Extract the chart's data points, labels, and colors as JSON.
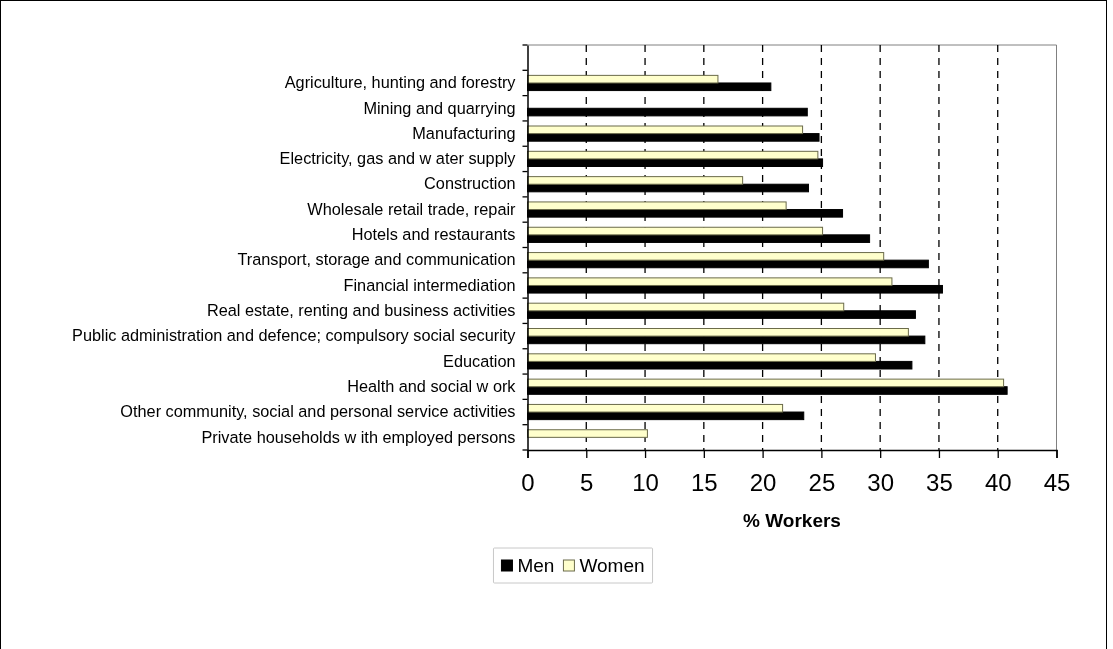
{
  "chart_data": {
    "type": "bar",
    "orientation": "horizontal",
    "xlabel": "% Workers",
    "categories": [
      null,
      "Agriculture, hunting and forestry",
      "Mining and quarrying",
      "Manufacturing",
      "Electricity, gas and w ater supply",
      "Construction",
      "Wholesale retail trade, repair",
      "Hotels and restaurants",
      "Transport, storage and communication",
      "Financial intermediation",
      "Real estate, renting and business activities",
      "Public administration and defence; compulsory social security",
      "Education",
      "Health and social w ork",
      "Other community, social and personal service activities",
      "Private households w ith employed persons"
    ],
    "series": [
      {
        "name": "Men",
        "color": "#000000",
        "values": [
          null,
          20.7,
          23.8,
          24.8,
          25.1,
          23.9,
          26.8,
          29.1,
          34.1,
          35.3,
          33.0,
          33.8,
          32.7,
          40.8,
          23.5,
          null
        ]
      },
      {
        "name": "Women",
        "color": "#ffffcc",
        "values": [
          null,
          16.2,
          null,
          23.4,
          24.7,
          18.3,
          22.0,
          25.1,
          30.3,
          31.0,
          26.9,
          32.4,
          29.6,
          40.5,
          21.7,
          10.2
        ]
      }
    ],
    "xlim": [
      0,
      45
    ],
    "xticks": [
      0,
      5,
      10,
      15,
      20,
      25,
      30,
      35,
      40,
      45
    ],
    "grid": "x",
    "legend": "bottom"
  }
}
